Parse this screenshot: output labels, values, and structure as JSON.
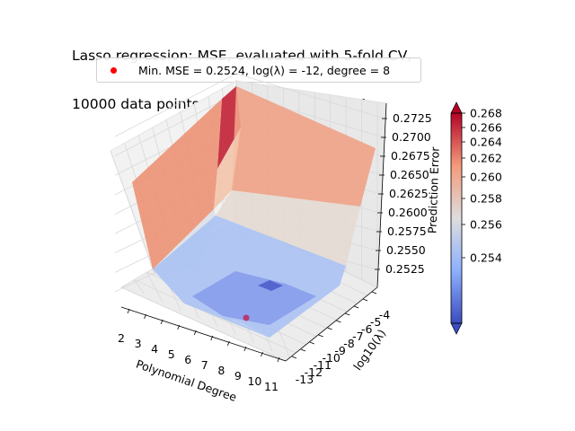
{
  "figure": {
    "title_line1": "Lasso regression: MSE, evaluated with 5-fold CV,",
    "title_line2": "10000 data points with variance = 0.2484"
  },
  "legend": {
    "label": "Min. MSE = 0.2524, log(λ) = -12, degree = 8",
    "marker_color": "#ff0000"
  },
  "chart_data": {
    "type": "surface3d",
    "title": "Lasso regression: MSE, evaluated with 5-fold CV, 10000 data points with variance = 0.2484",
    "xlabel": "Polynomial Degree",
    "ylabel": "log10(λ)",
    "zlabel": "Prediction Error",
    "x_ticks": [
      "2",
      "3",
      "4",
      "5",
      "6",
      "7",
      "8",
      "9",
      "10",
      "11"
    ],
    "y_ticks": [
      "-13",
      "-12",
      "-11",
      "-10",
      "-9",
      "-8",
      "-7",
      "-6",
      "-5",
      "-4"
    ],
    "z_ticks": [
      "0.2525",
      "0.2550",
      "0.2575",
      "0.2600",
      "0.2625",
      "0.2650",
      "0.2675",
      "0.2700",
      "0.2725"
    ],
    "zlim": [
      0.2522,
      0.2735
    ],
    "colorbar": {
      "cmap": "coolwarm",
      "ticks": [
        "0.254",
        "0.256",
        "0.258",
        "0.260",
        "0.262",
        "0.264",
        "0.266",
        "0.268"
      ],
      "range": [
        0.2522,
        0.2685
      ]
    },
    "min_point": {
      "degree": 8,
      "log_lambda": -12,
      "mse": 0.2524,
      "color": "#ff0000"
    },
    "surface_corner_values": {
      "degree2_lambda-13": 0.2558,
      "degree2_lambda-4": 0.2668,
      "degree11_lambda-13": 0.2528,
      "degree11_lambda-4": 0.2668,
      "degree2_lambda-12": 0.2723
    }
  }
}
